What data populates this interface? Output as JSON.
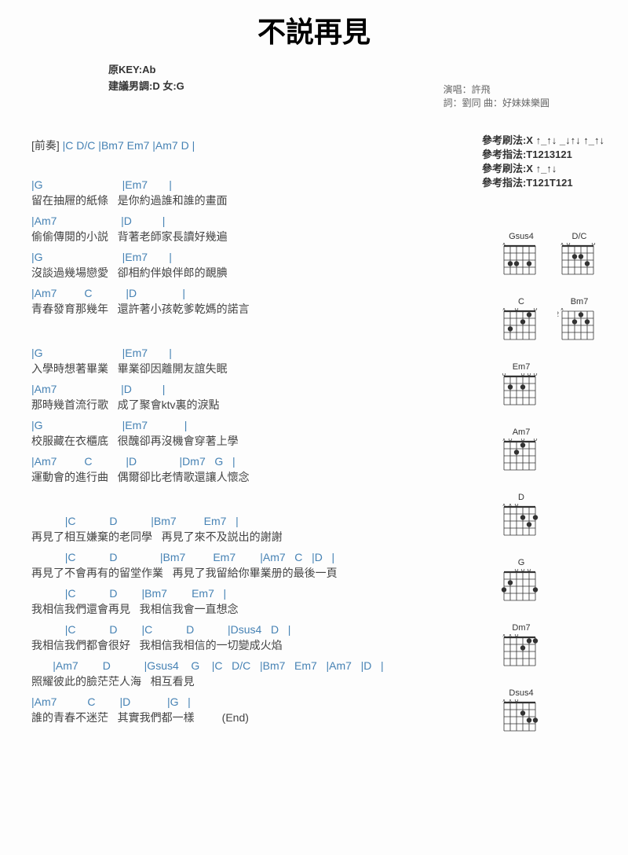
{
  "title": "不説再見",
  "meta": {
    "key": "原KEY:Ab",
    "suggest": "建議男調:D 女:G",
    "singer": "演唱：許飛",
    "credits": "詞：劉同  曲：好妹妹樂圓"
  },
  "intro": {
    "label": "[前奏]",
    "chords": " |C   D/C   |Bm7   Em7   |Am7   D   |"
  },
  "ref": {
    "r1": "參考刷法:X ↑_↑↓ _↓↑↓ ↑_↑↓",
    "r2": "參考指法:T1213121",
    "r3": "參考刷法:X ↑_↑↓",
    "r4": "參考指法:T121T121"
  },
  "lines": [
    {
      "c": "|G                          |Em7       |",
      "l": "留在抽屜的紙條   是你約過誰和誰的畫面"
    },
    {
      "c": "|Am7                     |D          |",
      "l": "偷偷傳閱的小説   背著老師家長讀好幾遍"
    },
    {
      "c": "|G                          |Em7       |",
      "l": "沒談過幾場戀愛   卻相約伴娘伴郎的靦腆"
    },
    {
      "c": "|Am7         C           |D               |",
      "l": "青春發育那幾年   還許著小孩乾爹乾媽的諾言"
    },
    {
      "spacer": true
    },
    {
      "c": "|G                          |Em7       |",
      "l": "入學時想著畢業   畢業卻因離開友誼失眠"
    },
    {
      "c": "|Am7                     |D          |",
      "l": "那時幾首流行歌   成了聚會ktv裏的淚點"
    },
    {
      "c": "|G                          |Em7            |",
      "l": "校服藏在衣櫃底   很醜卻再沒機會穿著上學"
    },
    {
      "c": "|Am7         C           |D              |Dm7   G   |",
      "l": "運動會的進行曲   偶爾卻比老情歌還讓人懷念"
    },
    {
      "spacer": true
    },
    {
      "c": "           |C           D           |Bm7         Em7   |",
      "l": "再見了相互嫌棄的老同學   再見了來不及説出的謝謝"
    },
    {
      "c": "           |C           D              |Bm7         Em7        |Am7   C   |D   |",
      "l": "再見了不會再有的留堂作業   再見了我留給你畢業册的最後一頁"
    },
    {
      "c": "           |C           D        |Bm7        Em7   |",
      "l": "我相信我們還會再見   我相信我會一直想念"
    },
    {
      "c": "           |C           D        |C           D           |Dsus4   D   |",
      "l": "我相信我們都會很好   我相信我相信的一切變成火焰"
    },
    {
      "c": "       |Am7        D           |Gsus4    G    |C   D/C   |Bm7   Em7   |Am7   |D   |",
      "l": "照耀彼此的臉茫茫人海   相互看見"
    },
    {
      "c": "|Am7          C        |D            |G   |",
      "l": "誰的青春不迷茫   其實我們都一樣         (End)"
    }
  ],
  "diagrams": [
    [
      {
        "name": "Gsus4",
        "mark": "x",
        "dots": [
          [
            0,
            1,
            3
          ],
          [
            1,
            2,
            3
          ],
          [
            2,
            4,
            3
          ]
        ],
        "open": [],
        "mute": [
          0
        ]
      },
      {
        "name": "D/C",
        "mark": "x",
        "dots": [
          [
            1,
            2,
            2
          ],
          [
            2,
            3,
            2
          ],
          [
            0,
            4,
            3
          ]
        ],
        "open": [
          1,
          5
        ],
        "mute": [
          0
        ]
      }
    ],
    [
      {
        "name": "C",
        "mark": "x     o   o",
        "dots": [
          [
            0,
            1,
            3
          ],
          [
            1,
            3,
            2
          ],
          [
            2,
            4,
            1
          ]
        ],
        "open": [
          2,
          5
        ],
        "mute": [
          0
        ]
      },
      {
        "name": "Bm7",
        "mark": "x",
        "fret": "2",
        "dots": [
          [
            2,
            1,
            1
          ],
          [
            2,
            2,
            3
          ],
          [
            2,
            3,
            2
          ],
          [
            2,
            4,
            3
          ],
          [
            2,
            5,
            1
          ]
        ],
        "barre": [
          2,
          1,
          5
        ],
        "open": [],
        "mute": [
          0
        ]
      }
    ],
    [
      {
        "name": "Em7",
        "mark": "o         o o o",
        "dots": [
          [
            0,
            1,
            2
          ],
          [
            1,
            3,
            2
          ]
        ],
        "open": [
          0,
          3,
          4,
          5
        ],
        "mute": []
      }
    ],
    [
      {
        "name": "Am7",
        "mark": "x o     o   o",
        "dots": [
          [
            1,
            2,
            2
          ],
          [
            2,
            3,
            1
          ]
        ],
        "open": [
          1,
          3,
          5
        ],
        "mute": [
          0
        ]
      }
    ],
    [
      {
        "name": "D",
        "mark": "x x o",
        "dots": [
          [
            0,
            3,
            2
          ],
          [
            1,
            4,
            3
          ],
          [
            2,
            5,
            2
          ]
        ],
        "open": [
          2
        ],
        "mute": [
          0,
          1
        ]
      }
    ],
    [
      {
        "name": "G",
        "mark": "    o o o",
        "dots": [
          [
            0,
            0,
            3
          ],
          [
            1,
            1,
            2
          ],
          [
            2,
            5,
            3
          ]
        ],
        "open": [
          2,
          3,
          4
        ],
        "mute": []
      }
    ],
    [
      {
        "name": "Dm7",
        "mark": "x x o",
        "dots": [
          [
            2,
            3,
            2
          ],
          [
            1,
            4,
            1
          ],
          [
            0,
            5,
            1
          ]
        ],
        "open": [
          2
        ],
        "mute": [
          0,
          1
        ]
      }
    ],
    [
      {
        "name": "Dsus4",
        "mark": "x x o",
        "dots": [
          [
            0,
            3,
            2
          ],
          [
            1,
            4,
            3
          ],
          [
            2,
            5,
            3
          ]
        ],
        "open": [
          2
        ],
        "mute": [
          0,
          1
        ]
      }
    ]
  ]
}
